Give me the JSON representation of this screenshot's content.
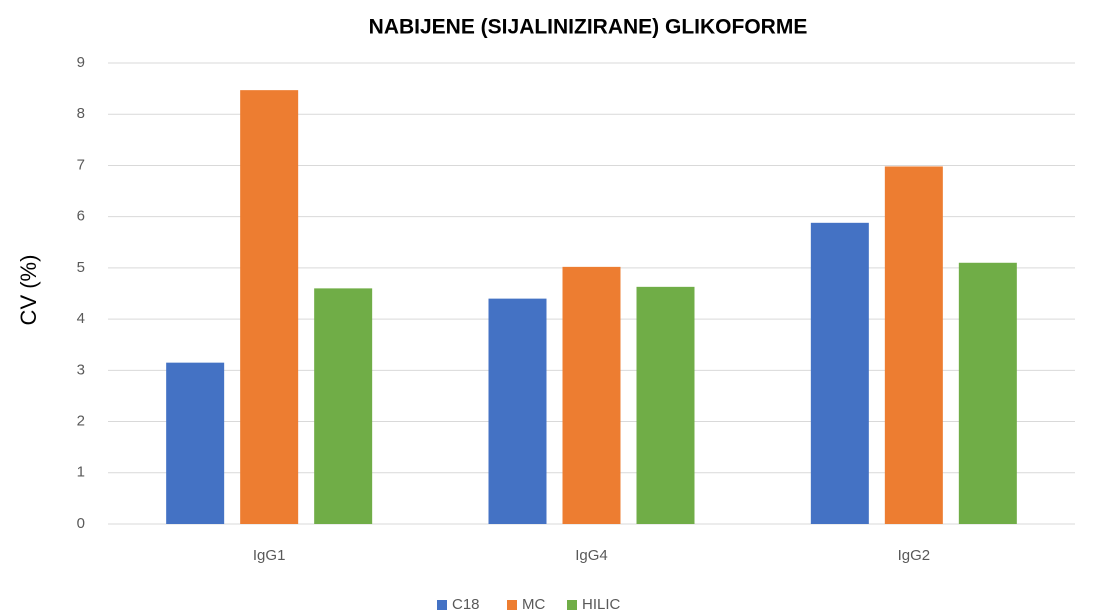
{
  "chart_data": {
    "type": "bar",
    "title": "NABIJENE (SIJALINIZIRANE) GLIKOFORME",
    "y_label": "CV (%)",
    "categories": [
      "IgG1",
      "IgG4",
      "IgG2"
    ],
    "series": [
      {
        "name": "C18",
        "color": "#4472c4",
        "values": [
          3.15,
          4.4,
          5.88
        ]
      },
      {
        "name": "MC",
        "color": "#ed7d31",
        "values": [
          8.47,
          5.02,
          6.98
        ]
      },
      {
        "name": "HILIC",
        "color": "#70ad47",
        "values": [
          4.6,
          4.63,
          5.1
        ]
      }
    ],
    "ylim": [
      0,
      9
    ],
    "yticks": [
      0,
      1,
      2,
      3,
      4,
      5,
      6,
      7,
      8,
      9
    ],
    "grid": true,
    "legend": "bottom"
  }
}
